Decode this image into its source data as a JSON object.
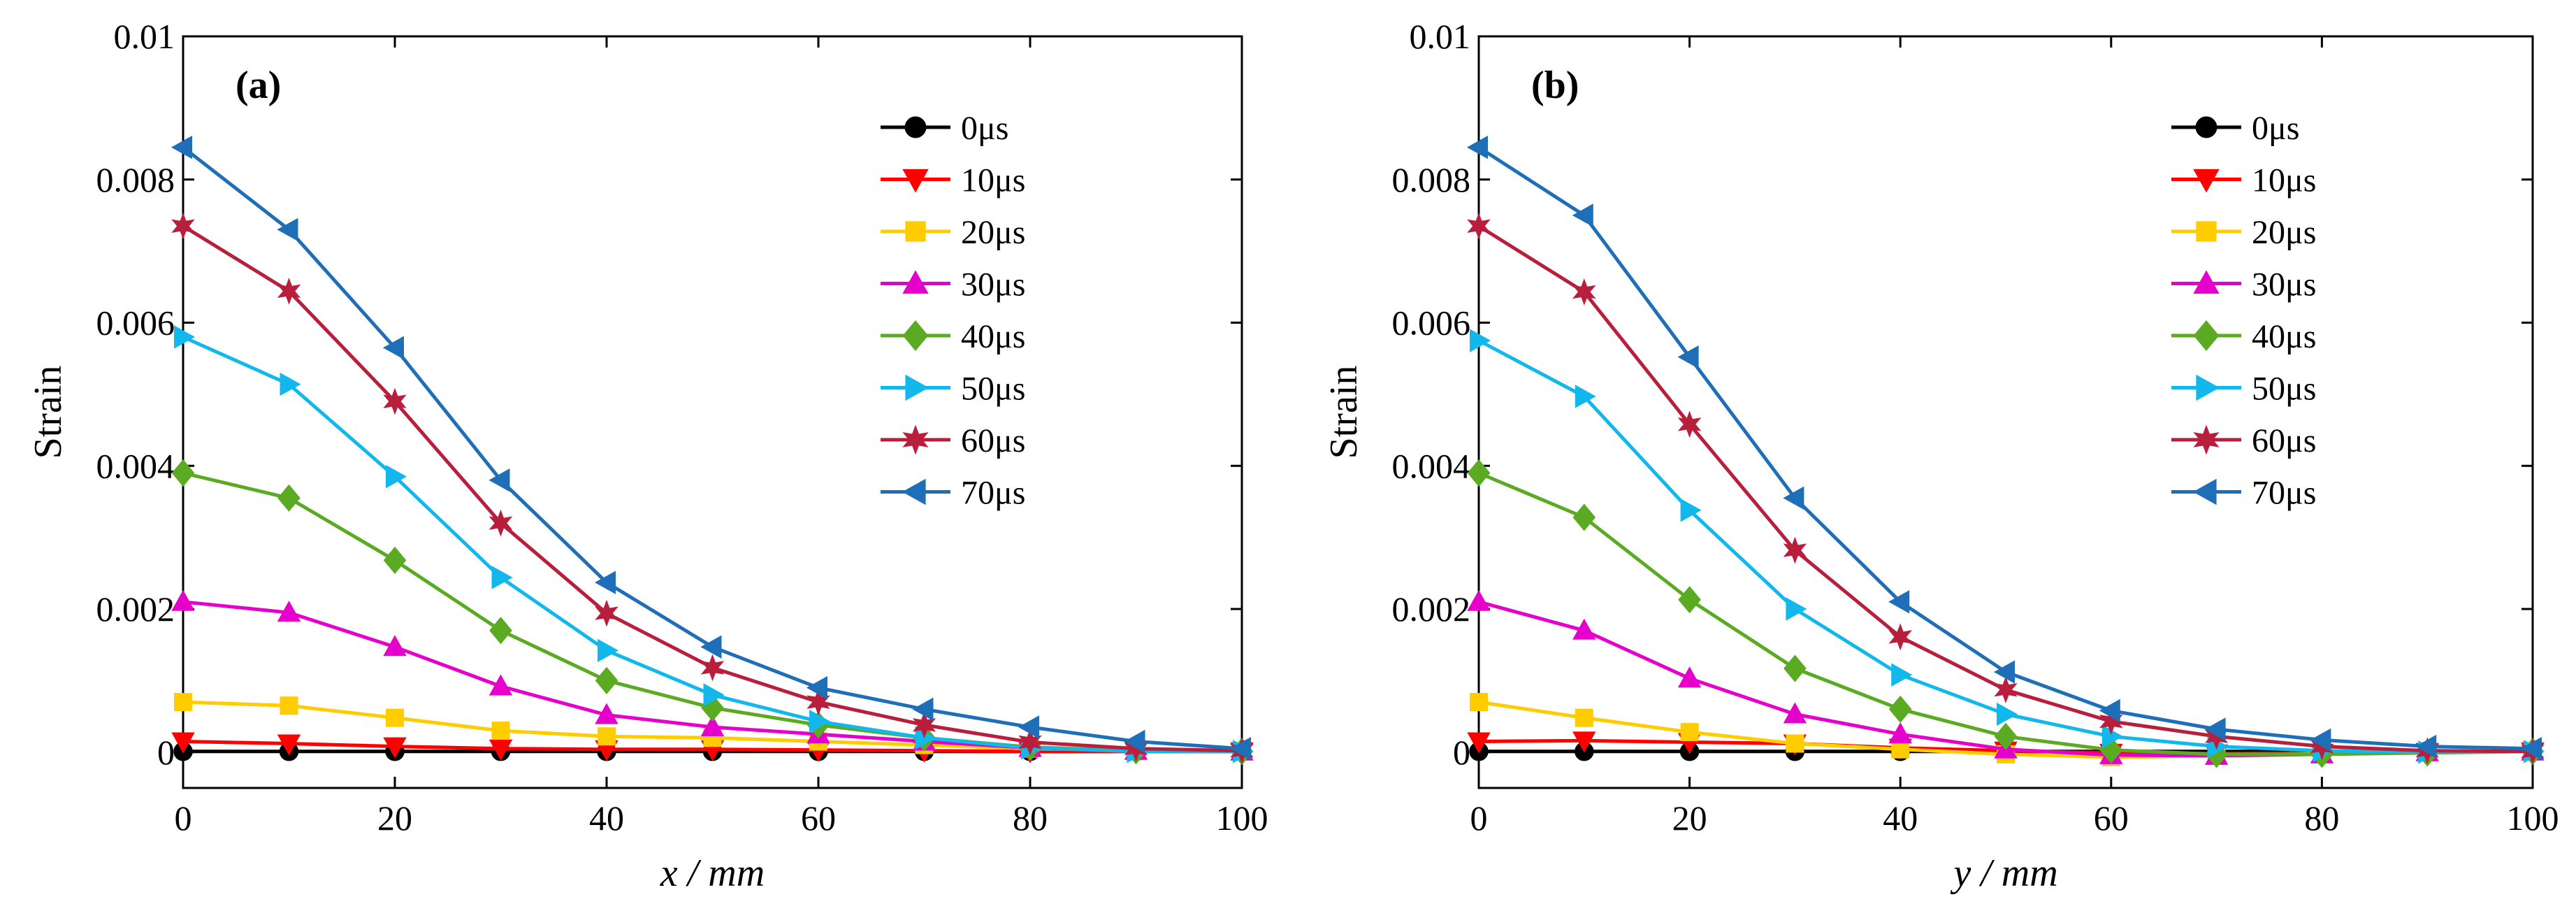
{
  "chart_data": [
    {
      "type": "line",
      "panel_label": "(a)",
      "xlabel": "x / mm",
      "ylabel": "Strain",
      "xlim": [
        0,
        100
      ],
      "ylim": [
        -0.0005,
        0.01
      ],
      "x": [
        0,
        10,
        20,
        30,
        40,
        50,
        60,
        70,
        80,
        90,
        100
      ],
      "xticks": [
        "0",
        "20",
        "40",
        "60",
        "80",
        "100"
      ],
      "yticks": [
        "0",
        "0.002",
        "0.004",
        "0.006",
        "0.008",
        "0.01"
      ],
      "legend_position": "top-right",
      "series": [
        {
          "name": "0μs",
          "color": "#000000",
          "marker": "circle",
          "values": [
            1e-05,
            1e-05,
            1e-05,
            1e-05,
            1e-05,
            1e-05,
            1e-05,
            1e-05,
            1e-05,
            1e-05,
            1e-05
          ]
        },
        {
          "name": "10μs",
          "color": "#ff0000",
          "marker": "triangle-down",
          "values": [
            0.00015,
            0.00012,
            8e-05,
            5e-05,
            4e-05,
            4e-05,
            3e-05,
            2e-05,
            1e-05,
            1e-05,
            1e-05
          ]
        },
        {
          "name": "20μs",
          "color": "#ffcc00",
          "marker": "square",
          "values": [
            0.0007,
            0.00065,
            0.00048,
            0.0003,
            0.00022,
            0.0002,
            0.00015,
            0.0001,
            5e-05,
            3e-05,
            1e-05
          ]
        },
        {
          "name": "30μs",
          "color": "#e600cc",
          "marker": "triangle-up",
          "values": [
            0.0021,
            0.00195,
            0.00147,
            0.00092,
            0.00052,
            0.00035,
            0.00025,
            0.00015,
            6e-05,
            2e-05,
            1e-05
          ]
        },
        {
          "name": "40μs",
          "color": "#5aaa22",
          "marker": "diamond",
          "values": [
            0.0039,
            0.00355,
            0.00268,
            0.0017,
            0.001,
            0.00062,
            0.00038,
            0.0002,
            7e-05,
            2e-05,
            1e-05
          ]
        },
        {
          "name": "50μs",
          "color": "#12b8ec",
          "marker": "triangle-right",
          "values": [
            0.0058,
            0.00514,
            0.00385,
            0.00244,
            0.00142,
            0.0008,
            0.00043,
            0.0002,
            6e-05,
            1e-05,
            1e-05
          ]
        },
        {
          "name": "60μs",
          "color": "#b81f3c",
          "marker": "star",
          "values": [
            0.00735,
            0.00644,
            0.0049,
            0.0032,
            0.00194,
            0.00118,
            0.0007,
            0.00038,
            0.00014,
            5e-05,
            2e-05
          ]
        },
        {
          "name": "70μs",
          "color": "#1f6eb8",
          "marker": "triangle-left",
          "values": [
            0.00845,
            0.0073,
            0.00565,
            0.0038,
            0.00237,
            0.00147,
            0.0009,
            0.0006,
            0.00035,
            0.00015,
            5e-05
          ]
        }
      ]
    },
    {
      "type": "line",
      "panel_label": "(b)",
      "xlabel": "y / mm",
      "ylabel": "Strain",
      "xlim": [
        0,
        100
      ],
      "ylim": [
        -0.0005,
        0.01
      ],
      "x": [
        0,
        10,
        20,
        30,
        40,
        50,
        60,
        70,
        80,
        90,
        100
      ],
      "xticks": [
        "0",
        "20",
        "40",
        "60",
        "80",
        "100"
      ],
      "yticks": [
        "0",
        "0.002",
        "0.004",
        "0.006",
        "0.008",
        "0.01"
      ],
      "legend_position": "top-right",
      "series": [
        {
          "name": "0μs",
          "color": "#000000",
          "marker": "circle",
          "values": [
            1e-05,
            1e-05,
            1e-05,
            1e-05,
            1e-05,
            1e-05,
            1e-05,
            1e-05,
            1e-05,
            1e-05,
            1e-05
          ]
        },
        {
          "name": "10μs",
          "color": "#ff0000",
          "marker": "triangle-down",
          "values": [
            0.00015,
            0.00016,
            0.00014,
            0.00012,
            6e-05,
            2e-05,
            -1e-05,
            -2e-05,
            -1e-05,
            0.0,
            1e-05
          ]
        },
        {
          "name": "20μs",
          "color": "#ffcc00",
          "marker": "square",
          "values": [
            0.0007,
            0.00048,
            0.00028,
            0.00012,
            4e-05,
            -3e-05,
            -7e-05,
            -5e-05,
            -2e-05,
            0.0,
            1e-05
          ]
        },
        {
          "name": "30μs",
          "color": "#e600cc",
          "marker": "triangle-up",
          "values": [
            0.0021,
            0.0017,
            0.00103,
            0.00053,
            0.00025,
            4e-05,
            -4e-05,
            -5e-05,
            -3e-05,
            0.0,
            1e-05
          ]
        },
        {
          "name": "40μs",
          "color": "#5aaa22",
          "marker": "diamond",
          "values": [
            0.0039,
            0.00328,
            0.00213,
            0.00117,
            0.0006,
            0.00022,
            3e-05,
            -3e-05,
            -3e-05,
            -1e-05,
            1e-05
          ]
        },
        {
          "name": "50μs",
          "color": "#12b8ec",
          "marker": "triangle-right",
          "values": [
            0.00575,
            0.00497,
            0.00338,
            0.002,
            0.00108,
            0.00053,
            0.00022,
            8e-05,
            2e-05,
            0.0,
            1e-05
          ]
        },
        {
          "name": "60μs",
          "color": "#b81f3c",
          "marker": "star",
          "values": [
            0.00735,
            0.00643,
            0.00458,
            0.00282,
            0.00161,
            0.00087,
            0.00043,
            0.00022,
            8e-05,
            2e-05,
            1e-05
          ]
        },
        {
          "name": "70μs",
          "color": "#1f6eb8",
          "marker": "triangle-left",
          "values": [
            0.00845,
            0.0075,
            0.00552,
            0.00355,
            0.0021,
            0.00112,
            0.00058,
            0.00032,
            0.00017,
            8e-05,
            5e-05
          ]
        }
      ]
    }
  ]
}
